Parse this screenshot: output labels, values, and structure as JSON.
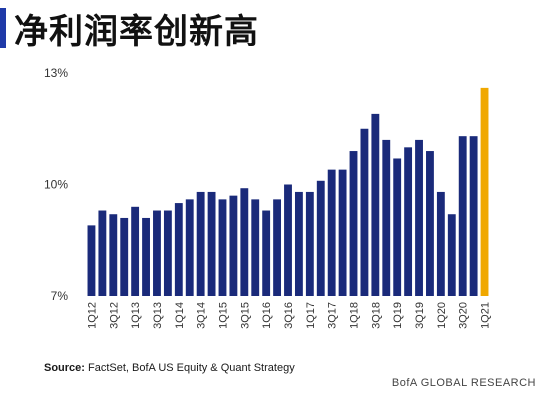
{
  "title": "净利润率创新高",
  "source": {
    "label": "Source:",
    "text": "FactSet, BofA US Equity & Quant Strategy"
  },
  "footer": "BofA GLOBAL RESEARCH",
  "colors": {
    "bar": "#1a2a7a",
    "highlight": "#f0a800",
    "title_accent": "#1f3aa8"
  },
  "chart_data": {
    "type": "bar",
    "title": "",
    "xlabel": "",
    "ylabel": "",
    "ylim": [
      7,
      13
    ],
    "yticks": [
      {
        "value": 7,
        "label": "7%"
      },
      {
        "value": 10,
        "label": "10%"
      },
      {
        "value": 13,
        "label": "13%"
      }
    ],
    "grid": false,
    "categories": [
      "1Q12",
      "2Q12",
      "3Q12",
      "4Q12",
      "1Q13",
      "2Q13",
      "3Q13",
      "4Q13",
      "1Q14",
      "2Q14",
      "3Q14",
      "4Q14",
      "1Q15",
      "2Q15",
      "3Q15",
      "4Q15",
      "1Q16",
      "2Q16",
      "3Q16",
      "4Q16",
      "1Q17",
      "2Q17",
      "3Q17",
      "4Q17",
      "1Q18",
      "2Q18",
      "3Q18",
      "4Q18",
      "1Q19",
      "2Q19",
      "3Q19",
      "4Q19",
      "1Q20",
      "2Q20",
      "3Q20",
      "4Q20",
      "1Q21"
    ],
    "xtick_labels": [
      "1Q12",
      "",
      "3Q12",
      "",
      "1Q13",
      "",
      "3Q13",
      "",
      "1Q14",
      "",
      "3Q14",
      "",
      "1Q15",
      "",
      "3Q15",
      "",
      "1Q16",
      "",
      "3Q16",
      "",
      "1Q17",
      "",
      "3Q17",
      "",
      "1Q18",
      "",
      "3Q18",
      "",
      "1Q19",
      "",
      "3Q19",
      "",
      "1Q20",
      "",
      "3Q20",
      "",
      "1Q21"
    ],
    "values": [
      8.9,
      9.3,
      9.2,
      9.1,
      9.4,
      9.1,
      9.3,
      9.3,
      9.5,
      9.6,
      9.8,
      9.8,
      9.6,
      9.7,
      9.9,
      9.6,
      9.3,
      9.6,
      10.0,
      9.8,
      9.8,
      10.1,
      10.4,
      10.4,
      10.9,
      11.5,
      11.9,
      11.2,
      10.7,
      11.0,
      11.2,
      10.9,
      9.8,
      9.2,
      11.3,
      11.3,
      12.6
    ],
    "highlight_index": 36
  }
}
